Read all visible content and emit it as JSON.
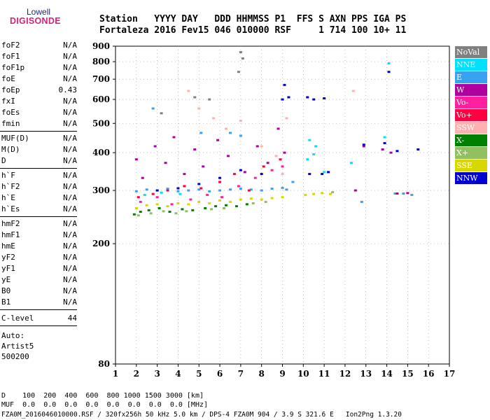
{
  "logo": {
    "top": "Lowell",
    "main": "DIGISONDE"
  },
  "header": {
    "line1": "Station   YYYY DAY   DDD HHMMSS P1  FFS S AXN PPS IGA PS",
    "line2": "Fortaleza 2016 Fev15 046 010000 RSF     1 714 100 10+ 11"
  },
  "params": {
    "group1": [
      {
        "k": "foF2",
        "v": "N/A"
      },
      {
        "k": "foF1",
        "v": "N/A"
      },
      {
        "k": "foF1p",
        "v": "N/A"
      },
      {
        "k": "foE",
        "v": "N/A"
      },
      {
        "k": "foEp",
        "v": "0.43"
      },
      {
        "k": "fxI",
        "v": "N/A"
      },
      {
        "k": "foEs",
        "v": "N/A"
      },
      {
        "k": "fmin",
        "v": "N/A"
      }
    ],
    "group2": [
      {
        "k": "MUF(D)",
        "v": "N/A"
      },
      {
        "k": "M(D)",
        "v": "N/A"
      },
      {
        "k": "D",
        "v": "N/A"
      }
    ],
    "group3": [
      {
        "k": "h`F",
        "v": "N/A"
      },
      {
        "k": "h`F2",
        "v": "N/A"
      },
      {
        "k": "h`E",
        "v": "N/A"
      },
      {
        "k": "h`Es",
        "v": "N/A"
      }
    ],
    "group4": [
      {
        "k": "hmF2",
        "v": "N/A"
      },
      {
        "k": "hmF1",
        "v": "N/A"
      },
      {
        "k": "hmE",
        "v": "N/A"
      },
      {
        "k": "yF2",
        "v": "N/A"
      },
      {
        "k": "yF1",
        "v": "N/A"
      },
      {
        "k": "yE",
        "v": "N/A"
      },
      {
        "k": "B0",
        "v": "N/A"
      },
      {
        "k": "B1",
        "v": "N/A"
      }
    ],
    "clevel": {
      "k": "C-level",
      "v": "44"
    },
    "auto": [
      "Auto:",
      "Artist5",
      "500200"
    ]
  },
  "legend": [
    {
      "label": "NoVal",
      "color": "#808080"
    },
    {
      "label": "NNE",
      "color": "#00e0ff"
    },
    {
      "label": "E",
      "color": "#3aa0f0"
    },
    {
      "label": "W",
      "color": "#b000a0"
    },
    {
      "label": "Vo-",
      "color": "#ff20a0"
    },
    {
      "label": "Vo+",
      "color": "#ff0040"
    },
    {
      "label": "SSW",
      "color": "#ffb0b0"
    },
    {
      "label": "X-",
      "color": "#008000"
    },
    {
      "label": "X+",
      "color": "#90c060"
    },
    {
      "label": "SSE",
      "color": "#d8d800"
    },
    {
      "label": "NNW",
      "color": "#0000d0"
    }
  ],
  "footer": {
    "line1": "D    100  200  400  600  800 1000 1500 3000 [km]",
    "line2": "MUF  0.0  0.0  0.0  0.0  0.0  0.0  0.0  0.0 [MHz]",
    "line3": "FZA0M_2016046010000.RSF / 320fx256h 50 kHz 5.0 km / DPS-4 FZA0M 904 / 3.9 S 321.6 E   Ion2Png 1.3.20"
  },
  "chart_data": {
    "type": "scatter",
    "title": "",
    "xlabel": "",
    "ylabel": "",
    "xlim": [
      1,
      17
    ],
    "ylim": [
      80,
      900
    ],
    "x_ticks": [
      1,
      2,
      3,
      4,
      5,
      6,
      7,
      8,
      9,
      10,
      11,
      12,
      13,
      14,
      15,
      16,
      17
    ],
    "y_ticks": [
      80,
      200,
      300,
      400,
      500,
      600,
      700,
      800,
      900
    ],
    "y_scale": "log",
    "grid": true,
    "legend_position": "right",
    "series": [
      {
        "name": "E",
        "color": "#3aa0f0",
        "points": [
          [
            2.0,
            298
          ],
          [
            2.5,
            302
          ],
          [
            3.0,
            300
          ],
          [
            3.5,
            304
          ],
          [
            4.0,
            298
          ],
          [
            4.5,
            300
          ],
          [
            5.0,
            302
          ],
          [
            5.5,
            298
          ],
          [
            6.0,
            300
          ],
          [
            6.5,
            302
          ],
          [
            7.0,
            304
          ],
          [
            7.5,
            302
          ],
          [
            8.0,
            300
          ],
          [
            8.5,
            304
          ],
          [
            9.0,
            306
          ],
          [
            9.2,
            302
          ],
          [
            5.1,
            465
          ],
          [
            6.5,
            465
          ],
          [
            7.0,
            455
          ],
          [
            2.8,
            560
          ],
          [
            9.5,
            320
          ],
          [
            14.4,
            293
          ],
          [
            14.8,
            293
          ],
          [
            15.2,
            290
          ],
          [
            12.8,
            275
          ]
        ]
      },
      {
        "name": "SSE",
        "color": "#d8d800",
        "points": [
          [
            2.0,
            262
          ],
          [
            2.5,
            268
          ],
          [
            3.0,
            270
          ],
          [
            3.5,
            266
          ],
          [
            4.0,
            272
          ],
          [
            4.5,
            270
          ],
          [
            5.0,
            275
          ],
          [
            5.5,
            272
          ],
          [
            6.0,
            278
          ],
          [
            6.5,
            275
          ],
          [
            7.0,
            280
          ],
          [
            7.5,
            282
          ],
          [
            8.0,
            280
          ],
          [
            8.5,
            283
          ],
          [
            9.0,
            285
          ],
          [
            10.1,
            290
          ],
          [
            10.5,
            292
          ],
          [
            10.9,
            294
          ],
          [
            11.3,
            292
          ]
        ]
      },
      {
        "name": "X-",
        "color": "#008000",
        "points": [
          [
            1.9,
            250
          ],
          [
            2.2,
            255
          ],
          [
            2.6,
            258
          ],
          [
            3.1,
            262
          ],
          [
            3.6,
            255
          ],
          [
            4.2,
            260
          ],
          [
            4.7,
            258
          ],
          [
            5.3,
            262
          ],
          [
            5.8,
            266
          ],
          [
            6.3,
            268
          ],
          [
            6.8,
            266
          ],
          [
            7.3,
            270
          ]
        ]
      },
      {
        "name": "X+",
        "color": "#90c060",
        "points": [
          [
            2.1,
            248
          ],
          [
            2.7,
            252
          ],
          [
            3.3,
            256
          ],
          [
            3.9,
            252
          ],
          [
            4.4,
            256
          ],
          [
            5.6,
            260
          ],
          [
            6.2,
            262
          ],
          [
            7.6,
            272
          ],
          [
            8.2,
            275
          ],
          [
            11.4,
            296
          ]
        ]
      },
      {
        "name": "NNE",
        "color": "#00e0ff",
        "points": [
          [
            2.4,
            290
          ],
          [
            3.2,
            295
          ],
          [
            4.1,
            292
          ],
          [
            10.3,
            440
          ],
          [
            10.6,
            420
          ],
          [
            10.2,
            380
          ],
          [
            11.0,
            345
          ],
          [
            10.5,
            395
          ],
          [
            12.3,
            370
          ],
          [
            13.9,
            450
          ],
          [
            14.1,
            790
          ]
        ]
      },
      {
        "name": "W",
        "color": "#b000a0",
        "points": [
          [
            2.0,
            380
          ],
          [
            2.3,
            330
          ],
          [
            2.9,
            420
          ],
          [
            3.4,
            370
          ],
          [
            3.8,
            450
          ],
          [
            4.3,
            340
          ],
          [
            4.8,
            410
          ],
          [
            5.2,
            360
          ],
          [
            5.9,
            440
          ],
          [
            6.4,
            390
          ],
          [
            7.2,
            345
          ],
          [
            7.8,
            420
          ],
          [
            8.3,
            370
          ],
          [
            8.8,
            480
          ],
          [
            9.1,
            400
          ],
          [
            12.9,
            420
          ],
          [
            13.8,
            410
          ],
          [
            14.2,
            400
          ],
          [
            14.5,
            293
          ],
          [
            15.0,
            294
          ],
          [
            12.5,
            300
          ]
        ]
      },
      {
        "name": "Vo-",
        "color": "#ff20a0",
        "points": [
          [
            2.2,
            275
          ],
          [
            3.0,
            285
          ],
          [
            3.7,
            270
          ],
          [
            4.6,
            280
          ],
          [
            5.4,
            290
          ],
          [
            6.1,
            285
          ],
          [
            6.9,
            310
          ],
          [
            7.7,
            330
          ],
          [
            8.5,
            350
          ],
          [
            9.0,
            360
          ]
        ]
      },
      {
        "name": "Vo+",
        "color": "#ff0040",
        "points": [
          [
            2.1,
            285
          ],
          [
            2.8,
            292
          ],
          [
            3.5,
            300
          ],
          [
            4.3,
            310
          ],
          [
            5.1,
            305
          ],
          [
            6.0,
            320
          ],
          [
            6.7,
            340
          ],
          [
            7.4,
            300
          ],
          [
            8.1,
            360
          ],
          [
            8.9,
            380
          ]
        ]
      },
      {
        "name": "SSW",
        "color": "#ffb0b0",
        "points": [
          [
            4.5,
            640
          ],
          [
            5.0,
            560
          ],
          [
            5.7,
            520
          ],
          [
            6.3,
            480
          ],
          [
            7.0,
            510
          ],
          [
            8.0,
            420
          ],
          [
            8.7,
            390
          ],
          [
            9.2,
            520
          ],
          [
            9.0,
            340
          ],
          [
            12.4,
            640
          ]
        ]
      },
      {
        "name": "NNW",
        "color": "#0000d0",
        "points": [
          [
            3.0,
            300
          ],
          [
            4.0,
            305
          ],
          [
            5.0,
            315
          ],
          [
            6.0,
            330
          ],
          [
            7.0,
            350
          ],
          [
            8.0,
            340
          ],
          [
            9.0,
            600
          ],
          [
            9.3,
            610
          ],
          [
            10.2,
            610
          ],
          [
            10.5,
            600
          ],
          [
            11.0,
            605
          ],
          [
            10.3,
            340
          ],
          [
            10.9,
            340
          ],
          [
            11.2,
            345
          ],
          [
            9.1,
            670
          ],
          [
            12.9,
            425
          ],
          [
            13.9,
            430
          ],
          [
            14.5,
            405
          ],
          [
            15.5,
            410
          ],
          [
            14.1,
            740
          ]
        ]
      },
      {
        "name": "NoVal",
        "color": "#808080",
        "points": [
          [
            7.0,
            860
          ],
          [
            7.1,
            820
          ],
          [
            6.9,
            740
          ],
          [
            4.8,
            610
          ],
          [
            3.2,
            540
          ],
          [
            5.5,
            600
          ]
        ]
      }
    ]
  }
}
